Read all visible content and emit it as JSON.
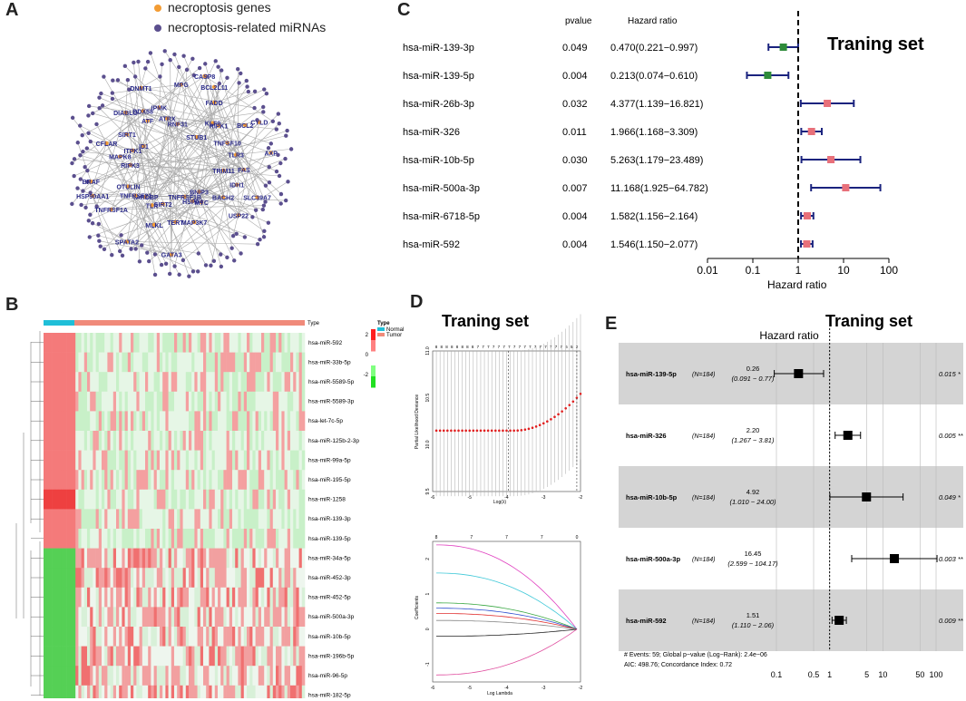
{
  "panels": {
    "a": "A",
    "b": "B",
    "c": "C",
    "d": "D",
    "e": "E"
  },
  "panel_a": {
    "legend": {
      "genes": "necroptosis genes",
      "mirnas": "necroptosis-related miRNAs",
      "gene_color": "#f39c34",
      "mirna_color": "#5b4f8e"
    },
    "gene_labels": [
      "FAS",
      "TRIM11",
      "IDH1",
      "SLC39A7",
      "BACH2",
      "USP22",
      "BNIP3",
      "MYC",
      "HSPA4",
      "MAP3K7",
      "TNFRSF1B",
      "GATA3",
      "TERT",
      "SIRT2",
      "MLKL",
      "TLR",
      "SPATA2",
      "TARDBP",
      "TNFRSF21",
      "TNFRSF1A",
      "OTULIN",
      "HSP90AA1",
      "BRAF",
      "RIPK3",
      "MAPK8",
      "CFLAR",
      "ITPK1",
      "ID1",
      "SIRT1",
      "DIABLO",
      "ATF",
      "DDX58",
      "DNMT1",
      "IPMK",
      "ATRX",
      "RNF31",
      "MPG",
      "CASP8",
      "BCL2L11",
      "FADD",
      "STUB1",
      "KLF9",
      "RIPK1",
      "BCL2",
      "CYLD",
      "TNFSF10",
      "TLR3",
      "AXP"
    ]
  },
  "panel_b": {
    "row_labels": [
      "hsa-miR-592",
      "hsa-miR-33b-5p",
      "hsa-miR-5589-5p",
      "hsa-miR-5589-3p",
      "hsa-let-7c-5p",
      "hsa-miR-125b-2-3p",
      "hsa-miR-99a-5p",
      "hsa-miR-195-5p",
      "hsa-miR-1258",
      "hsa-miR-139-3p",
      "hsa-miR-139-5p",
      "hsa-miR-34a-5p",
      "hsa-miR-452-3p",
      "hsa-miR-452-5p",
      "hsa-miR-500a-3p",
      "hsa-miR-10b-5p",
      "hsa-miR-196b-5p",
      "hsa-miR-96-5p",
      "hsa-miR-182-5p",
      "hsa-miR-183-5p"
    ],
    "type_label": "Type",
    "legend_title": "Type",
    "legend_normal": "Normal",
    "legend_tumor": "Tumor",
    "scale_ticks": [
      "2",
      "0",
      "-2"
    ],
    "normal_color": "#1fbfd8",
    "tumor_color": "#f08a7a"
  },
  "chart_data": [
    {
      "type": "forest",
      "panel": "C",
      "title": "Traning set",
      "col_pvalue": "pvalue",
      "col_hr": "Hazard ratio",
      "xlabel": "Hazard ratio",
      "xscale": "log",
      "xlim": [
        0.01,
        100
      ],
      "xticks": [
        "0.01",
        "0.1",
        "1",
        "10",
        "100"
      ],
      "rows": [
        {
          "name": "hsa-miR-139-3p",
          "pvalue": "0.049",
          "hr_text": "0.470(0.221−0.997)",
          "hr": 0.47,
          "lo": 0.221,
          "hi": 0.997
        },
        {
          "name": "hsa-miR-139-5p",
          "pvalue": "0.004",
          "hr_text": "0.213(0.074−0.610)",
          "hr": 0.213,
          "lo": 0.074,
          "hi": 0.61
        },
        {
          "name": "hsa-miR-26b-3p",
          "pvalue": "0.032",
          "hr_text": "4.377(1.139−16.821)",
          "hr": 4.377,
          "lo": 1.139,
          "hi": 16.821
        },
        {
          "name": "hsa-miR-326",
          "pvalue": "0.011",
          "hr_text": "1.966(1.168−3.309)",
          "hr": 1.966,
          "lo": 1.168,
          "hi": 3.309
        },
        {
          "name": "hsa-miR-10b-5p",
          "pvalue": "0.030",
          "hr_text": "5.263(1.179−23.489)",
          "hr": 5.263,
          "lo": 1.179,
          "hi": 23.489
        },
        {
          "name": "hsa-miR-500a-3p",
          "pvalue": "0.007",
          "hr_text": "11.168(1.925−64.782)",
          "hr": 11.168,
          "lo": 1.925,
          "hi": 64.782
        },
        {
          "name": "hsa-miR-6718-5p",
          "pvalue": "0.004",
          "hr_text": "1.582(1.156−2.164)",
          "hr": 1.582,
          "lo": 1.156,
          "hi": 2.164
        },
        {
          "name": "hsa-miR-592",
          "pvalue": "0.004",
          "hr_text": "1.546(1.150−2.077)",
          "hr": 1.546,
          "lo": 1.15,
          "hi": 2.077
        }
      ]
    },
    {
      "type": "line",
      "panel": "D-top",
      "title": "Traning set",
      "xlabel": "Log(λ)",
      "ylabel": "Partial Likelihood Deviance",
      "xlim": [
        -6,
        -2
      ],
      "ylim": [
        9.5,
        11.0
      ],
      "xticks": [
        "-6",
        "-5",
        "-4",
        "-3",
        "-2"
      ],
      "yticks": [
        "9.5",
        "10.0",
        "10.5",
        "11.0"
      ],
      "top_ticks": [
        "8",
        "8",
        "8",
        "8",
        "8",
        "8",
        "8",
        "8",
        "7",
        "7",
        "7",
        "7",
        "7",
        "7",
        "7",
        "7",
        "7",
        "7",
        "7",
        "7",
        "7",
        "7",
        "7",
        "7",
        "7",
        "6",
        "5",
        "2"
      ],
      "lambda_min": -3.95,
      "lambda_1se": -2.1
    },
    {
      "type": "line",
      "panel": "D-bottom",
      "xlabel": "Log Lambda",
      "ylabel": "Coefficients",
      "xlim": [
        -6,
        -2
      ],
      "ylim": [
        -1.5,
        2.5
      ],
      "xticks": [
        "-6",
        "-5",
        "-4",
        "-3",
        "-2"
      ],
      "yticks": [
        "-1",
        "0",
        "1",
        "2"
      ],
      "top_ticks": [
        "8",
        "7",
        "7",
        "7",
        "0"
      ],
      "series": [
        {
          "name": "magenta",
          "color": "#e040c0",
          "start": 2.4
        },
        {
          "name": "cyan",
          "color": "#3fc8d8",
          "start": 1.6
        },
        {
          "name": "green",
          "color": "#3aa843",
          "start": 0.75
        },
        {
          "name": "blue",
          "color": "#3050d0",
          "start": 0.6
        },
        {
          "name": "red",
          "color": "#e03030",
          "start": 0.45
        },
        {
          "name": "gray",
          "color": "#888888",
          "start": 0.25
        },
        {
          "name": "black",
          "color": "#222222",
          "start": -0.2
        },
        {
          "name": "pink",
          "color": "#e050a0",
          "start": -1.3
        }
      ]
    },
    {
      "type": "forest",
      "panel": "E",
      "title": "Traning set",
      "header": "Hazard ratio",
      "xscale": "log",
      "xticks": [
        "0.1",
        "0.5",
        "1",
        "5",
        "10",
        "50",
        "100"
      ],
      "rows": [
        {
          "name": "hsa-miR-139-5p",
          "n": "(N=184)",
          "hr_text": "0.26",
          "ci_text": "(0.091 − 0.77)",
          "p": "0.015 *",
          "hr": 0.26,
          "lo": 0.091,
          "hi": 0.77
        },
        {
          "name": "hsa-miR-326",
          "n": "(N=184)",
          "hr_text": "2.20",
          "ci_text": "(1.267 − 3.81)",
          "p": "0.005 **",
          "hr": 2.2,
          "lo": 1.267,
          "hi": 3.81
        },
        {
          "name": "hsa-miR-10b-5p",
          "n": "(N=184)",
          "hr_text": "4.92",
          "ci_text": "(1.010 − 24.00)",
          "p": "0.049 *",
          "hr": 4.92,
          "lo": 1.01,
          "hi": 24.0
        },
        {
          "name": "hsa-miR-500a-3p",
          "n": "(N=184)",
          "hr_text": "16.45",
          "ci_text": "(2.599 − 104.17)",
          "p": "0.003 **",
          "hr": 16.45,
          "lo": 2.599,
          "hi": 104.17
        },
        {
          "name": "hsa-miR-592",
          "n": "(N=184)",
          "hr_text": "1.51",
          "ci_text": "(1.110 − 2.06)",
          "p": "0.009 **",
          "hr": 1.51,
          "lo": 1.11,
          "hi": 2.06
        }
      ],
      "footer1": "# Events: 59; Global p−value (Log−Rank): 2.4e−06",
      "footer2": "AIC: 498.76; Concordance Index: 0.72"
    }
  ]
}
